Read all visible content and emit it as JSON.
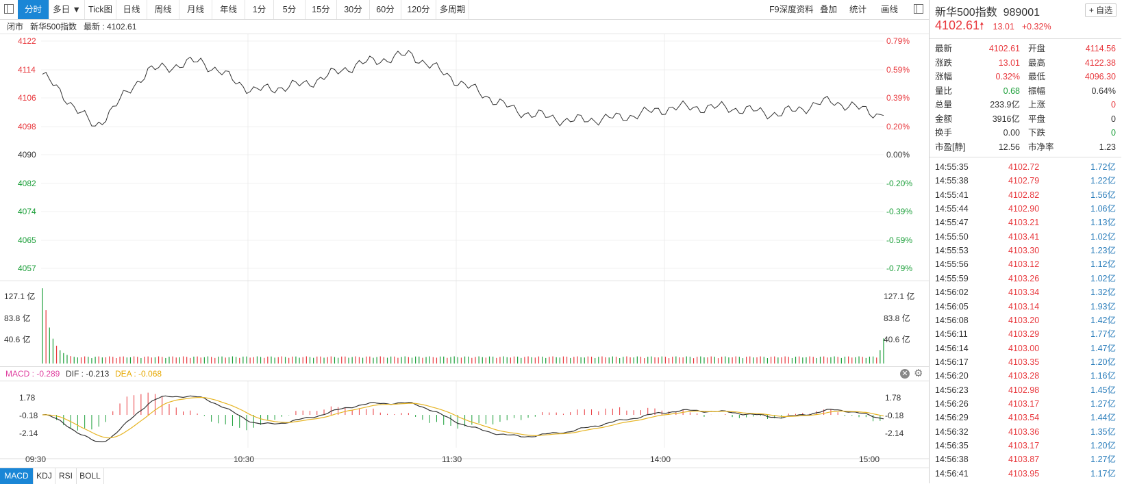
{
  "toolbar": {
    "tabs": [
      "分时",
      "多日 ▼",
      "Tick图",
      "日线",
      "周线",
      "月线",
      "年线",
      "1分",
      "5分",
      "15分",
      "30分",
      "60分",
      "120分",
      "多周期"
    ],
    "right_items": [
      "F9深度资料",
      "叠加",
      "统计",
      "画线"
    ]
  },
  "chart_info": {
    "status": "闭市",
    "name": "新华500指数",
    "latest_label": "最新 : 4102.61"
  },
  "price_axis": {
    "left": [
      "4122",
      "4114",
      "4106",
      "4098",
      "4090",
      "4082",
      "4074",
      "4065",
      "4057"
    ],
    "right": [
      "0.79%",
      "0.59%",
      "0.39%",
      "0.20%",
      "0.00%",
      "-0.20%",
      "-0.39%",
      "-0.59%",
      "-0.79%"
    ]
  },
  "volume_axis": {
    "labels": [
      "127.1 亿",
      "83.8 亿",
      "40.6 亿"
    ]
  },
  "macd_header": {
    "macd": "MACD : -0.289",
    "dif": "DIF : -0.213",
    "dea": "DEA : -0.068"
  },
  "macd_axis": {
    "labels": [
      "1.78",
      "-0.18",
      "-2.14"
    ]
  },
  "time_axis": [
    "09:30",
    "10:30",
    "11:30",
    "14:00",
    "15:00"
  ],
  "bottom_tabs": [
    "MACD",
    "KDJ",
    "RSI",
    "BOLL"
  ],
  "colors": {
    "up": "#e8383d",
    "down": "#1a9e38",
    "accent": "#1a86d6",
    "dif": "#333333",
    "dea": "#e6b422",
    "macd_label": "#e040a0"
  },
  "chart_data": {
    "type": "line",
    "price": {
      "ylim": [
        4053,
        4127
      ],
      "base": 4090,
      "x": [
        "09:30",
        "09:45",
        "10:00",
        "10:15",
        "10:30",
        "10:45",
        "11:00",
        "11:15",
        "11:30",
        "13:15",
        "13:30",
        "13:45",
        "14:00",
        "14:15",
        "14:30",
        "14:45",
        "15:00"
      ],
      "values": [
        4115,
        4099,
        4116,
        4119,
        4110,
        4112,
        4118,
        4121,
        4112,
        4104,
        4101,
        4102,
        4105,
        4105,
        4103,
        4107,
        4102.61
      ]
    },
    "volume": {
      "ylim": [
        0,
        185
      ],
      "first_bar": 168,
      "typical": 12,
      "last_bar": 56
    },
    "macd": {
      "ylim": [
        -4.6,
        4.8
      ],
      "dif_end": -0.213,
      "dea_end": -0.068,
      "macd_end": -0.289
    }
  },
  "quote": {
    "name": "新华500指数",
    "code": "989001",
    "fav": "+ 自选",
    "price": "4102.61",
    "change": "13.01",
    "pct": "+0.32%",
    "rows": [
      {
        "l1": "最新",
        "v1": "4102.61",
        "c1": "red",
        "l2": "开盘",
        "v2": "4114.56",
        "c2": "red"
      },
      {
        "l1": "涨跌",
        "v1": "13.01",
        "c1": "red",
        "l2": "最高",
        "v2": "4122.38",
        "c2": "red"
      },
      {
        "l1": "涨幅",
        "v1": "0.32%",
        "c1": "red",
        "l2": "最低",
        "v2": "4096.30",
        "c2": "red"
      },
      {
        "l1": "量比",
        "v1": "0.68",
        "c1": "green",
        "l2": "振幅",
        "v2": "0.64%",
        "c2": "black"
      },
      {
        "l1": "总量",
        "v1": "233.9亿",
        "c1": "black",
        "l2": "上涨",
        "v2": "0",
        "c2": "red"
      },
      {
        "l1": "金额",
        "v1": "3916亿",
        "c1": "black",
        "l2": "平盘",
        "v2": "0",
        "c2": "black"
      },
      {
        "l1": "换手",
        "v1": "0.00",
        "c1": "black",
        "l2": "下跌",
        "v2": "0",
        "c2": "green"
      },
      {
        "l1": "市盈[静]",
        "v1": "12.56",
        "c1": "black",
        "l2": "市净率",
        "v2": "1.23",
        "c2": "black"
      }
    ]
  },
  "ticks": [
    {
      "time": "14:55:35",
      "price": "4102.72",
      "vol": "1.72亿"
    },
    {
      "time": "14:55:38",
      "price": "4102.79",
      "vol": "1.22亿"
    },
    {
      "time": "14:55:41",
      "price": "4102.82",
      "vol": "1.56亿"
    },
    {
      "time": "14:55:44",
      "price": "4102.90",
      "vol": "1.06亿"
    },
    {
      "time": "14:55:47",
      "price": "4103.21",
      "vol": "1.13亿"
    },
    {
      "time": "14:55:50",
      "price": "4103.41",
      "vol": "1.02亿"
    },
    {
      "time": "14:55:53",
      "price": "4103.30",
      "vol": "1.23亿"
    },
    {
      "time": "14:55:56",
      "price": "4103.12",
      "vol": "1.12亿"
    },
    {
      "time": "14:55:59",
      "price": "4103.26",
      "vol": "1.02亿"
    },
    {
      "time": "14:56:02",
      "price": "4103.34",
      "vol": "1.32亿"
    },
    {
      "time": "14:56:05",
      "price": "4103.14",
      "vol": "1.93亿"
    },
    {
      "time": "14:56:08",
      "price": "4103.20",
      "vol": "1.42亿"
    },
    {
      "time": "14:56:11",
      "price": "4103.29",
      "vol": "1.77亿"
    },
    {
      "time": "14:56:14",
      "price": "4103.00",
      "vol": "1.47亿"
    },
    {
      "time": "14:56:17",
      "price": "4103.35",
      "vol": "1.20亿"
    },
    {
      "time": "14:56:20",
      "price": "4103.28",
      "vol": "1.16亿"
    },
    {
      "time": "14:56:23",
      "price": "4102.98",
      "vol": "1.45亿"
    },
    {
      "time": "14:56:26",
      "price": "4103.17",
      "vol": "1.27亿"
    },
    {
      "time": "14:56:29",
      "price": "4103.54",
      "vol": "1.44亿"
    },
    {
      "time": "14:56:32",
      "price": "4103.36",
      "vol": "1.35亿"
    },
    {
      "time": "14:56:35",
      "price": "4103.17",
      "vol": "1.20亿"
    },
    {
      "time": "14:56:38",
      "price": "4103.87",
      "vol": "1.27亿"
    },
    {
      "time": "14:56:41",
      "price": "4103.95",
      "vol": "1.17亿"
    }
  ]
}
